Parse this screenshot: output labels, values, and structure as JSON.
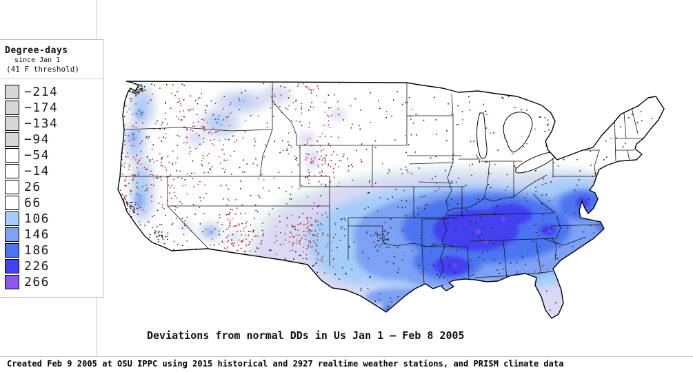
{
  "legend": {
    "title": "Degree-days",
    "subtitle": "since Jan 1",
    "threshold": "(41 F threshold)",
    "items": [
      {
        "value": "−214",
        "color": "#d6d6d6"
      },
      {
        "value": "−174",
        "color": "#d6d6d6"
      },
      {
        "value": "−134",
        "color": "#d6d6d6"
      },
      {
        "value": "−94",
        "color": "#d6d6d6"
      },
      {
        "value": "−54",
        "color": "#ffffff"
      },
      {
        "value": "−14",
        "color": "#ffffff"
      },
      {
        "value": "26",
        "color": "#ffffff"
      },
      {
        "value": "66",
        "color": "#ffffff"
      },
      {
        "value": "106",
        "color": "#a5cdf9"
      },
      {
        "value": "146",
        "color": "#7da1f4"
      },
      {
        "value": "186",
        "color": "#4b74f0"
      },
      {
        "value": "226",
        "color": "#4340ef"
      },
      {
        "value": "266",
        "color": "#8b57f0"
      }
    ]
  },
  "map": {
    "caption": "Deviations from normal DDs in Us Jan 1 — Feb 8 2005",
    "palette": {
      "fringe": "#e4f3ef",
      "lav": "#d9d9f4",
      "light": "#a5cdf9",
      "mid": "#7da1f4",
      "deep": "#4b74f0",
      "deepest": "#4340ef",
      "purple": "#8b57f0",
      "station_black": "#1a1a1a",
      "station_red": "#c42121",
      "border": "#111111",
      "outline": "#000000"
    }
  },
  "footer": {
    "text": "Created Feb 9 2005 at OSU IPPC using 2015 historical and 2927 realtime weather stations, and PRISM climate data"
  }
}
